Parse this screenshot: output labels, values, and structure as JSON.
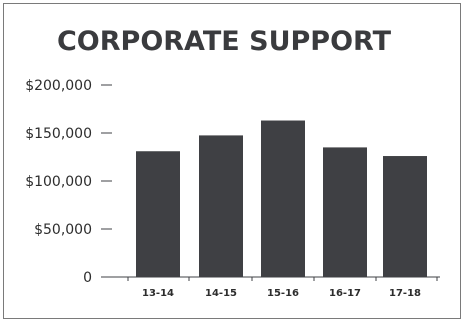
{
  "chart_data": {
    "type": "bar",
    "title": "CORPORATE SUPPORT",
    "categories": [
      "13-14",
      "14-15",
      "15-16",
      "16-17",
      "17-18"
    ],
    "values": [
      131000,
      147500,
      163000,
      135000,
      126000
    ],
    "ylim": [
      0,
      200000
    ],
    "yticks": [
      0,
      50000,
      100000,
      150000,
      200000
    ],
    "ytick_labels": [
      "0",
      "$50,000",
      "$100,000",
      "$150,000",
      "$200,000"
    ],
    "xlabel": "",
    "ylabel": "",
    "grid": false,
    "colors": {
      "bar": "#3f4044",
      "axis": "#3f4044"
    }
  }
}
